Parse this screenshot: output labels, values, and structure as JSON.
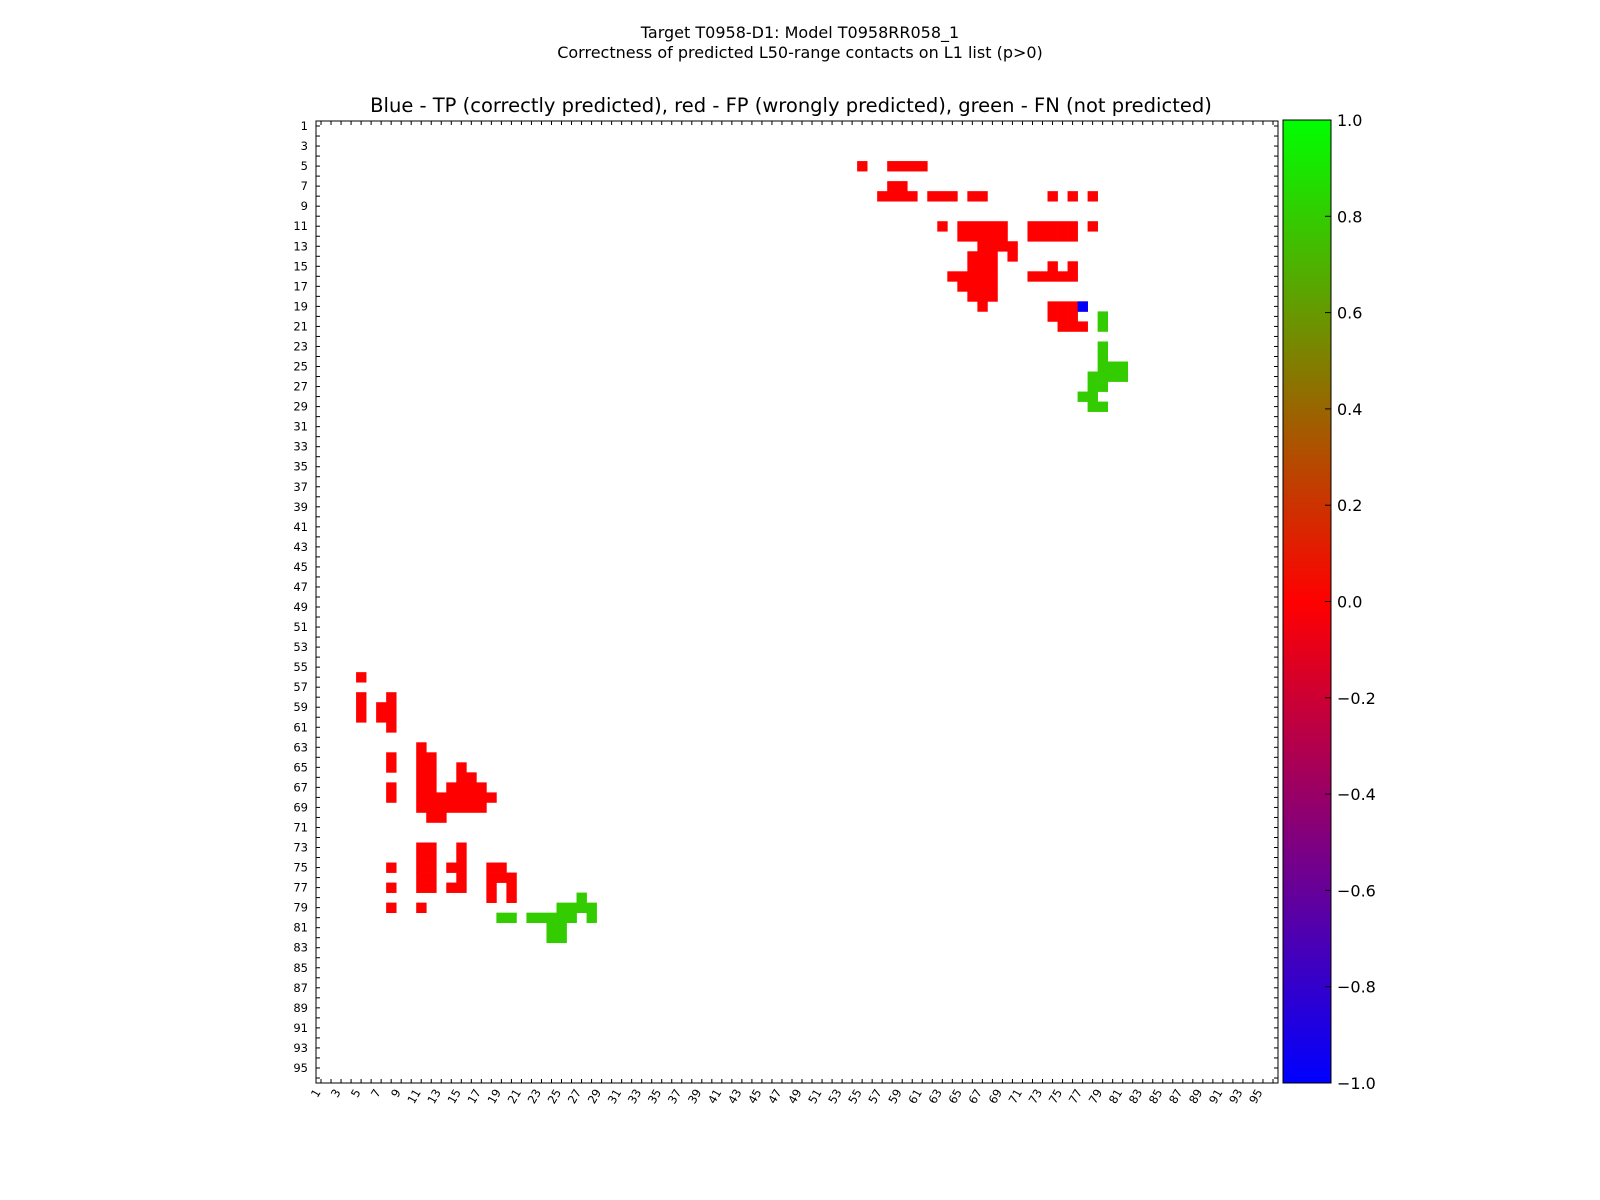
{
  "chart_data": {
    "type": "heatmap",
    "suptitle": [
      "Target T0958-D1: Model T0958RR058_1",
      "Correctness of predicted L50-range contacts on L1 list (p>0)"
    ],
    "title": "Blue - TP (correctly predicted), red - FP (wrongly predicted), green - FN (not predicted)",
    "xlabel": "",
    "ylabel": "",
    "n_residues": 96,
    "tick_labels": [
      "1",
      "3",
      "5",
      "7",
      "9",
      "11",
      "13",
      "15",
      "17",
      "19",
      "21",
      "23",
      "25",
      "27",
      "29",
      "31",
      "33",
      "35",
      "37",
      "39",
      "41",
      "43",
      "45",
      "47",
      "49",
      "51",
      "53",
      "55",
      "57",
      "59",
      "61",
      "63",
      "65",
      "67",
      "69",
      "71",
      "73",
      "75",
      "77",
      "79",
      "81",
      "83",
      "85",
      "87",
      "89",
      "91",
      "93",
      "95"
    ],
    "colorbar": {
      "min": -1.0,
      "max": 1.0,
      "tick_labels": [
        "1.0",
        "0.8",
        "0.6",
        "0.4",
        "0.2",
        "0.0",
        "−0.2",
        "−0.4",
        "−0.6",
        "−0.8",
        "−1.0"
      ],
      "colors": [
        "#0000ff",
        "#ff0000",
        "#00ff00"
      ]
    },
    "legend": {
      "tp": "#0000ff",
      "fp": "#ff0000",
      "fn": "#33cc00"
    },
    "tp": [
      [
        19,
        77
      ]
    ],
    "fp": [
      [
        5,
        55
      ],
      [
        5,
        58
      ],
      [
        5,
        59
      ],
      [
        5,
        60
      ],
      [
        5,
        61
      ],
      [
        7,
        58
      ],
      [
        7,
        59
      ],
      [
        8,
        57
      ],
      [
        8,
        58
      ],
      [
        8,
        59
      ],
      [
        8,
        60
      ],
      [
        8,
        62
      ],
      [
        8,
        63
      ],
      [
        8,
        64
      ],
      [
        8,
        66
      ],
      [
        8,
        67
      ],
      [
        8,
        74
      ],
      [
        8,
        76
      ],
      [
        8,
        78
      ],
      [
        11,
        63
      ],
      [
        11,
        65
      ],
      [
        11,
        66
      ],
      [
        11,
        67
      ],
      [
        11,
        68
      ],
      [
        11,
        69
      ],
      [
        11,
        72
      ],
      [
        11,
        73
      ],
      [
        11,
        74
      ],
      [
        11,
        75
      ],
      [
        11,
        76
      ],
      [
        11,
        78
      ],
      [
        12,
        65
      ],
      [
        12,
        66
      ],
      [
        12,
        67
      ],
      [
        12,
        68
      ],
      [
        12,
        69
      ],
      [
        12,
        72
      ],
      [
        12,
        73
      ],
      [
        12,
        74
      ],
      [
        12,
        75
      ],
      [
        12,
        76
      ],
      [
        13,
        67
      ],
      [
        13,
        68
      ],
      [
        13,
        69
      ],
      [
        13,
        70
      ],
      [
        14,
        66
      ],
      [
        14,
        67
      ],
      [
        14,
        68
      ],
      [
        14,
        70
      ],
      [
        15,
        66
      ],
      [
        15,
        67
      ],
      [
        15,
        68
      ],
      [
        15,
        74
      ],
      [
        15,
        76
      ],
      [
        16,
        64
      ],
      [
        16,
        65
      ],
      [
        16,
        66
      ],
      [
        16,
        67
      ],
      [
        16,
        68
      ],
      [
        16,
        72
      ],
      [
        16,
        73
      ],
      [
        16,
        74
      ],
      [
        16,
        75
      ],
      [
        16,
        76
      ],
      [
        17,
        65
      ],
      [
        17,
        66
      ],
      [
        17,
        67
      ],
      [
        17,
        68
      ],
      [
        18,
        66
      ],
      [
        18,
        67
      ],
      [
        18,
        68
      ],
      [
        19,
        67
      ],
      [
        19,
        74
      ],
      [
        19,
        75
      ],
      [
        19,
        76
      ],
      [
        19,
        77
      ],
      [
        20,
        74
      ],
      [
        20,
        75
      ],
      [
        20,
        76
      ],
      [
        21,
        75
      ],
      [
        21,
        76
      ],
      [
        21,
        77
      ],
      [
        56,
        5
      ],
      [
        58,
        5
      ],
      [
        58,
        8
      ],
      [
        59,
        5
      ],
      [
        59,
        7
      ],
      [
        59,
        8
      ],
      [
        60,
        5
      ],
      [
        60,
        7
      ],
      [
        60,
        8
      ],
      [
        61,
        8
      ],
      [
        63,
        11
      ],
      [
        64,
        8
      ],
      [
        64,
        11
      ],
      [
        64,
        12
      ],
      [
        65,
        8
      ],
      [
        65,
        11
      ],
      [
        65,
        12
      ],
      [
        65,
        15
      ],
      [
        66,
        11
      ],
      [
        66,
        12
      ],
      [
        66,
        15
      ],
      [
        66,
        16
      ],
      [
        67,
        8
      ],
      [
        67,
        11
      ],
      [
        67,
        12
      ],
      [
        67,
        14
      ],
      [
        67,
        15
      ],
      [
        67,
        16
      ],
      [
        67,
        17
      ],
      [
        68,
        8
      ],
      [
        68,
        11
      ],
      [
        68,
        12
      ],
      [
        68,
        13
      ],
      [
        68,
        14
      ],
      [
        68,
        15
      ],
      [
        68,
        16
      ],
      [
        68,
        17
      ],
      [
        68,
        18
      ],
      [
        69,
        11
      ],
      [
        69,
        12
      ],
      [
        69,
        13
      ],
      [
        69,
        14
      ],
      [
        69,
        15
      ],
      [
        69,
        16
      ],
      [
        69,
        17
      ],
      [
        70,
        12
      ],
      [
        70,
        13
      ],
      [
        73,
        11
      ],
      [
        73,
        12
      ],
      [
        73,
        15
      ],
      [
        74,
        11
      ],
      [
        74,
        12
      ],
      [
        74,
        15
      ],
      [
        75,
        8
      ],
      [
        75,
        11
      ],
      [
        75,
        12
      ],
      [
        75,
        14
      ],
      [
        75,
        15
      ],
      [
        75,
        18
      ],
      [
        75,
        19
      ],
      [
        76,
        11
      ],
      [
        76,
        12
      ],
      [
        76,
        15
      ],
      [
        76,
        18
      ],
      [
        76,
        19
      ],
      [
        76,
        20
      ],
      [
        77,
        8
      ],
      [
        77,
        11
      ],
      [
        77,
        12
      ],
      [
        77,
        14
      ],
      [
        77,
        15
      ],
      [
        77,
        18
      ],
      [
        77,
        20
      ],
      [
        78,
        18
      ],
      [
        78,
        20
      ],
      [
        79,
        8
      ],
      [
        79,
        11
      ]
    ],
    "fn": [
      [
        20,
        79
      ],
      [
        21,
        79
      ],
      [
        23,
        79
      ],
      [
        24,
        79
      ],
      [
        25,
        79
      ],
      [
        25,
        80
      ],
      [
        25,
        81
      ],
      [
        26,
        79
      ],
      [
        26,
        80
      ],
      [
        26,
        81
      ],
      [
        26,
        78
      ],
      [
        27,
        78
      ],
      [
        27,
        79
      ],
      [
        28,
        77
      ],
      [
        28,
        78
      ],
      [
        29,
        78
      ],
      [
        29,
        79
      ],
      [
        78,
        27
      ],
      [
        79,
        25
      ],
      [
        79,
        26
      ],
      [
        79,
        27
      ],
      [
        79,
        28
      ],
      [
        80,
        19
      ],
      [
        80,
        20
      ],
      [
        80,
        22
      ],
      [
        80,
        23
      ],
      [
        80,
        24
      ],
      [
        80,
        25
      ],
      [
        80,
        26
      ],
      [
        80,
        28
      ],
      [
        81,
        24
      ],
      [
        81,
        25
      ],
      [
        82,
        24
      ],
      [
        82,
        25
      ]
    ]
  }
}
